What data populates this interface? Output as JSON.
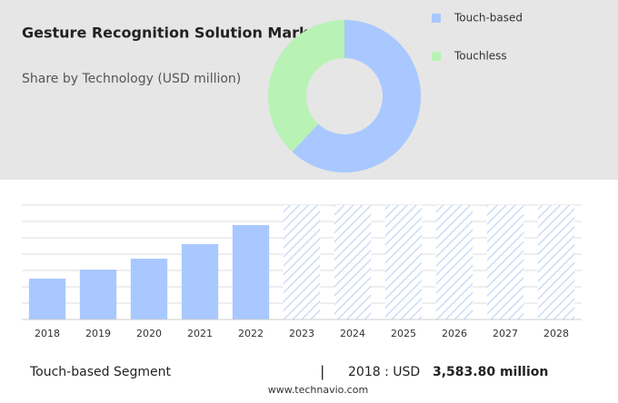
{
  "chart_data": [
    {
      "type": "pie",
      "title": "Gesture Recognition Solution Market",
      "subtitle": "Share by Technology (USD million)",
      "categories": [
        "Touch-based",
        "Touchless"
      ],
      "values": [
        62,
        38
      ],
      "colors": [
        "#a8c8ff",
        "#b8f2b4"
      ]
    },
    {
      "type": "bar",
      "categories": [
        "2018",
        "2019",
        "2020",
        "2021",
        "2022",
        "2023",
        "2024",
        "2025",
        "2026",
        "2027",
        "2028"
      ],
      "values": [
        45,
        55,
        67,
        83,
        104,
        null,
        null,
        null,
        null,
        null,
        null
      ],
      "color": "#a8c8ff",
      "ylim": [
        0,
        126
      ]
    }
  ],
  "footer": {
    "segment": "Touch-based Segment",
    "separator": "|",
    "year_label": "2018 : USD",
    "value_label": "3,583.80 million",
    "source": "www.technavio.com"
  }
}
